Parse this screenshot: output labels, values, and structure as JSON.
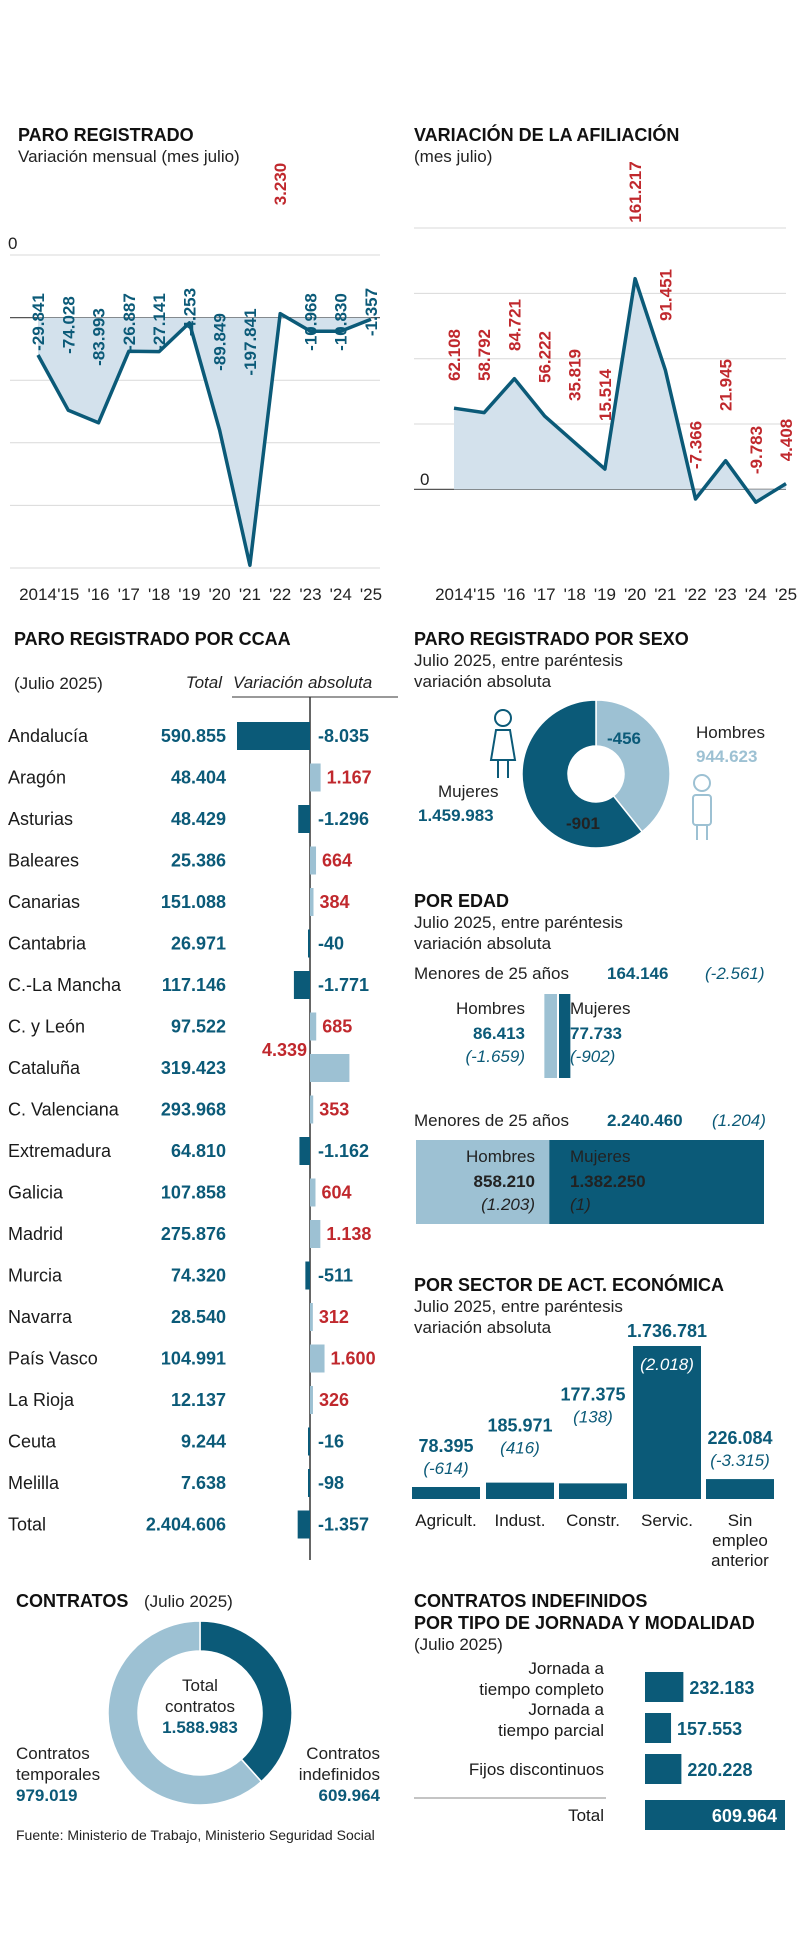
{
  "colors": {
    "dark": "#0b5a78",
    "light": "#9dc1d3",
    "area": "#d3e1ec",
    "red": "#c0282d",
    "text": "#1a1a1a",
    "grid": "#d9d9d9"
  },
  "chart_data": [
    {
      "type": "line",
      "title": "PARO REGISTRADO",
      "subtitle": "Variación mensual (mes julio)",
      "x": [
        "2014",
        "'15",
        "'16",
        "'17",
        "'18",
        "'19",
        "'20",
        "'21",
        "'22",
        "'23",
        "'24",
        "'25"
      ],
      "values": [
        -29841,
        -74028,
        -83993,
        -26887,
        -27141,
        -4253,
        -89849,
        -197841,
        3230,
        -10968,
        -10830,
        -1357
      ],
      "labels": [
        "-29.841",
        "-74.028",
        "-83.993",
        "-26.887",
        "-27.141",
        "-4.253",
        "-89.849",
        "-197.841",
        "3.230",
        "-10.968",
        "-10.830",
        "-1.357"
      ],
      "zero_label": "0",
      "ylim": [
        -200000,
        50000
      ]
    },
    {
      "type": "line",
      "title": "VARIACIÓN DE LA AFILIACIÓN",
      "subtitle": "(mes julio)",
      "x": [
        "2014",
        "'15",
        "'16",
        "'17",
        "'18",
        "'19",
        "'20",
        "'21",
        "'22",
        "'23",
        "'24",
        "'25"
      ],
      "values": [
        62108,
        58792,
        84721,
        56222,
        35819,
        15514,
        161217,
        91451,
        -7366,
        21945,
        -9783,
        4408
      ],
      "labels": [
        "62.108",
        "58.792",
        "84.721",
        "56.222",
        "35.819",
        "15.514",
        "161.217",
        "91.451",
        "-7.366",
        "21.945",
        "-9.783",
        "4.408"
      ],
      "zero_label": "0",
      "ylim": [
        -15000,
        200000
      ]
    },
    {
      "type": "bar",
      "title": "PARO REGISTRADO POR CCAA",
      "subtitle": "(Julio 2025)",
      "col_total": "Total",
      "col_var": "Variación absoluta",
      "rows": [
        {
          "name": "Andalucía",
          "total": "590.855",
          "var": -8035,
          "var_label": "-8.035"
        },
        {
          "name": "Aragón",
          "total": "48.404",
          "var": 1167,
          "var_label": "1.167"
        },
        {
          "name": "Asturias",
          "total": "48.429",
          "var": -1296,
          "var_label": "-1.296"
        },
        {
          "name": "Baleares",
          "total": "25.386",
          "var": 664,
          "var_label": "664"
        },
        {
          "name": "Canarias",
          "total": "151.088",
          "var": 384,
          "var_label": "384"
        },
        {
          "name": "Cantabria",
          "total": "26.971",
          "var": -40,
          "var_label": "-40"
        },
        {
          "name": "C.-La Mancha",
          "total": "117.146",
          "var": -1771,
          "var_label": "-1.771"
        },
        {
          "name": "C. y León",
          "total": "97.522",
          "var": 685,
          "var_label": "685"
        },
        {
          "name": "Cataluña",
          "total": "319.423",
          "var": 4339,
          "var_label": "4.339"
        },
        {
          "name": "C. Valenciana",
          "total": "293.968",
          "var": 353,
          "var_label": "353"
        },
        {
          "name": "Extremadura",
          "total": "64.810",
          "var": -1162,
          "var_label": "-1.162"
        },
        {
          "name": "Galicia",
          "total": "107.858",
          "var": 604,
          "var_label": "604"
        },
        {
          "name": "Madrid",
          "total": "275.876",
          "var": 1138,
          "var_label": "1.138"
        },
        {
          "name": "Murcia",
          "total": "74.320",
          "var": -511,
          "var_label": "-511"
        },
        {
          "name": "Navarra",
          "total": "28.540",
          "var": 312,
          "var_label": "312"
        },
        {
          "name": "País Vasco",
          "total": "104.991",
          "var": 1600,
          "var_label": "1.600"
        },
        {
          "name": "La Rioja",
          "total": "12.137",
          "var": 326,
          "var_label": "326"
        },
        {
          "name": "Ceuta",
          "total": "9.244",
          "var": -16,
          "var_label": "-16"
        },
        {
          "name": "Melilla",
          "total": "7.638",
          "var": -98,
          "var_label": "-98"
        },
        {
          "name": "Total",
          "total": "2.404.606",
          "var": -1357,
          "var_label": "-1.357"
        }
      ]
    },
    {
      "type": "pie",
      "title": "PARO REGISTRADO POR SEXO",
      "subtitle1": "Julio 2025, entre paréntesis",
      "subtitle2": "variación absoluta",
      "slices": [
        {
          "name": "Mujeres",
          "value": 1459983,
          "value_label": "1.459.983",
          "var_label": "-901"
        },
        {
          "name": "Hombres",
          "value": 944623,
          "value_label": "944.623",
          "var_label": "-456"
        }
      ]
    },
    {
      "type": "bar",
      "title": "POR EDAD",
      "subtitle1": "Julio 2025, entre paréntesis",
      "subtitle2": "variación absoluta",
      "groups": [
        {
          "label": "Menores de 25 años",
          "total": "164.146",
          "total_var": "(-2.561)",
          "hombres": {
            "name": "Hombres",
            "value": 86413,
            "value_label": "86.413",
            "var": "(-1.659)"
          },
          "mujeres": {
            "name": "Mujeres",
            "value": 77733,
            "value_label": "77.733",
            "var": "(-902)"
          }
        },
        {
          "label": "Menores de 25 años",
          "total": "2.240.460",
          "total_var": "(1.204)",
          "hombres": {
            "name": "Hombres",
            "value": 858210,
            "value_label": "858.210",
            "var": "(1.203)"
          },
          "mujeres": {
            "name": "Mujeres",
            "value": 1382250,
            "value_label": "1.382.250",
            "var": "(1)"
          }
        }
      ]
    },
    {
      "type": "bar",
      "title": "POR SECTOR DE ACT. ECONÓMICA",
      "subtitle1": "Julio 2025, entre paréntesis",
      "subtitle2": "variación absoluta",
      "categories": [
        "Agricult.",
        "Indust.",
        "Constr.",
        "Servic.",
        "Sin empleo anterior"
      ],
      "category_lines": [
        [
          "Agricult."
        ],
        [
          "Indust."
        ],
        [
          "Constr."
        ],
        [
          "Servic."
        ],
        [
          "Sin",
          "empleo",
          "anterior"
        ]
      ],
      "values": [
        78395,
        185971,
        177375,
        1736781,
        226084
      ],
      "value_labels": [
        "78.395",
        "185.971",
        "177.375",
        "1.736.781",
        "226.084"
      ],
      "var_labels": [
        "(-614)",
        "(416)",
        "(138)",
        "(2.018)",
        "(-3.315)"
      ]
    },
    {
      "type": "pie",
      "title": "CONTRATOS",
      "title_extra": "(Julio 2025)",
      "center_lines": [
        "Total",
        "contratos"
      ],
      "center_value": "1.588.983",
      "slices": [
        {
          "name_lines": [
            "Contratos",
            "indefinidos"
          ],
          "value": 609964,
          "value_label": "609.964"
        },
        {
          "name_lines": [
            "Contratos",
            "temporales"
          ],
          "value": 979019,
          "value_label": "979.019"
        }
      ]
    },
    {
      "type": "bar",
      "title_lines": [
        "CONTRATOS INDEFINIDOS",
        "POR TIPO DE JORNADA Y MODALIDAD"
      ],
      "subtitle": "(Julio 2025)",
      "rows": [
        {
          "name_lines": [
            "Jornada a",
            "tiempo completo"
          ],
          "value": 232183,
          "value_label": "232.183"
        },
        {
          "name_lines": [
            "Jornada a",
            "tiempo parcial"
          ],
          "value": 157553,
          "value_label": "157.553"
        },
        {
          "name_lines": [
            "Fijos discontinuos"
          ],
          "value": 220228,
          "value_label": "220.228"
        },
        {
          "name_lines": [
            "Total"
          ],
          "value": 609964,
          "value_label": "609.964"
        }
      ]
    }
  ],
  "source": "Fuente: Ministerio de Trabajo, Ministerio Seguridad Social"
}
